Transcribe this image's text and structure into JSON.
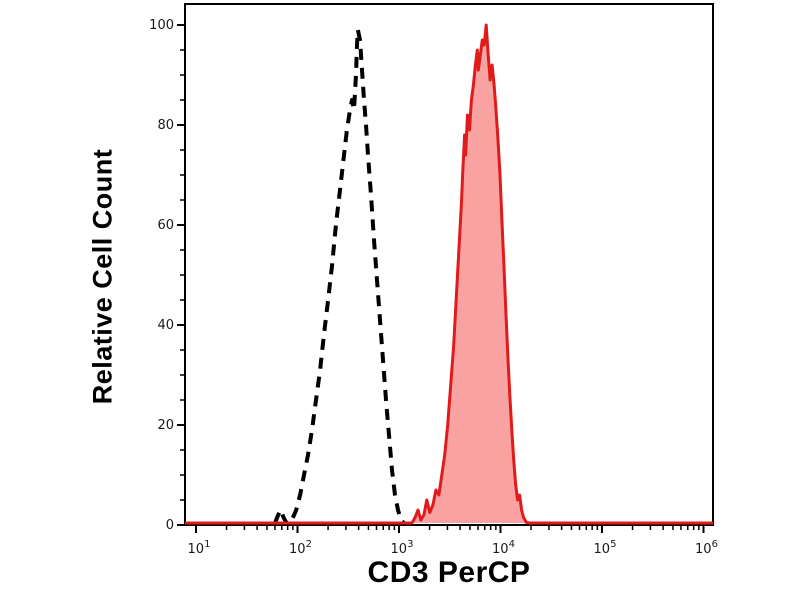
{
  "figure": {
    "ylabel": "Relative Cell Count",
    "xlabel": "CD3 PerCP",
    "background": "#ffffff"
  },
  "chart_data": {
    "type": "area",
    "title": "",
    "xlabel": "CD3 PerCP",
    "ylabel": "Relative Cell Count",
    "xscale": "log",
    "xlim": [
      8,
      1250000
    ],
    "ylim": [
      0,
      100
    ],
    "grid": false,
    "legend": "none",
    "x_tick_base": "10",
    "x_tick_exponents": [
      1,
      2,
      3,
      4,
      5,
      6
    ],
    "y_ticks": [
      0,
      20,
      40,
      60,
      80,
      100
    ],
    "y_minor_step": 5,
    "axis_color": "#000000",
    "tick_label_color": "#1a1a1a",
    "series": [
      {
        "name": "dashed-black-control",
        "style": "dashed",
        "color": "#000000",
        "fill": "none",
        "points": [
          [
            60,
            0
          ],
          [
            63,
            1.5
          ],
          [
            68,
            3
          ],
          [
            73,
            1.5
          ],
          [
            78,
            0
          ],
          [
            85,
            0
          ],
          [
            88,
            1
          ],
          [
            97,
            3
          ],
          [
            106,
            6
          ],
          [
            116,
            10
          ],
          [
            127,
            14
          ],
          [
            139,
            19
          ],
          [
            152,
            25
          ],
          [
            167,
            31
          ],
          [
            182,
            38
          ],
          [
            200,
            45
          ],
          [
            219,
            52
          ],
          [
            239,
            60
          ],
          [
            262,
            67
          ],
          [
            287,
            74
          ],
          [
            307,
            79
          ],
          [
            329,
            83
          ],
          [
            344,
            85
          ],
          [
            360,
            83
          ],
          [
            377,
            90
          ],
          [
            386,
            96
          ],
          [
            394,
            99
          ],
          [
            413,
            97
          ],
          [
            432,
            91
          ],
          [
            452,
            85
          ],
          [
            473,
            80
          ],
          [
            495,
            74
          ],
          [
            530,
            66
          ],
          [
            567,
            57
          ],
          [
            607,
            49
          ],
          [
            650,
            41
          ],
          [
            695,
            33
          ],
          [
            744,
            25
          ],
          [
            797,
            18
          ],
          [
            853,
            11
          ],
          [
            913,
            6
          ],
          [
            978,
            3
          ],
          [
            1047,
            1
          ],
          [
            1120,
            0
          ]
        ]
      },
      {
        "name": "red-filled-positive",
        "style": "solid",
        "color": "#e01b1b",
        "fill": "#f9a2a2",
        "points": [
          [
            8,
            0
          ],
          [
            1340,
            0
          ],
          [
            1440,
            1.5
          ],
          [
            1540,
            3
          ],
          [
            1640,
            1
          ],
          [
            1760,
            2
          ],
          [
            1880,
            5
          ],
          [
            2010,
            2.5
          ],
          [
            2160,
            4
          ],
          [
            2310,
            7
          ],
          [
            2470,
            6
          ],
          [
            2640,
            10
          ],
          [
            2820,
            14
          ],
          [
            3020,
            20
          ],
          [
            3230,
            28
          ],
          [
            3460,
            36
          ],
          [
            3700,
            47
          ],
          [
            3960,
            58
          ],
          [
            4140,
            65
          ],
          [
            4230,
            70
          ],
          [
            4430,
            78
          ],
          [
            4530,
            74
          ],
          [
            4730,
            82
          ],
          [
            4950,
            79
          ],
          [
            5170,
            85
          ],
          [
            5410,
            88
          ],
          [
            5660,
            92
          ],
          [
            5910,
            95
          ],
          [
            6050,
            91
          ],
          [
            6320,
            94
          ],
          [
            6610,
            97
          ],
          [
            6910,
            96
          ],
          [
            7230,
            100
          ],
          [
            7560,
            94
          ],
          [
            7900,
            89
          ],
          [
            8260,
            92
          ],
          [
            8640,
            88
          ],
          [
            9030,
            83
          ],
          [
            9450,
            77
          ],
          [
            9880,
            70
          ],
          [
            10330,
            61
          ],
          [
            10800,
            52
          ],
          [
            11290,
            43
          ],
          [
            11800,
            34
          ],
          [
            12340,
            26
          ],
          [
            12910,
            19
          ],
          [
            13490,
            13
          ],
          [
            14110,
            8
          ],
          [
            14750,
            5
          ],
          [
            15430,
            6
          ],
          [
            16130,
            3
          ],
          [
            16870,
            1.5
          ],
          [
            18020,
            0.5
          ],
          [
            19260,
            0
          ],
          [
            1000000,
            0
          ]
        ]
      }
    ]
  }
}
